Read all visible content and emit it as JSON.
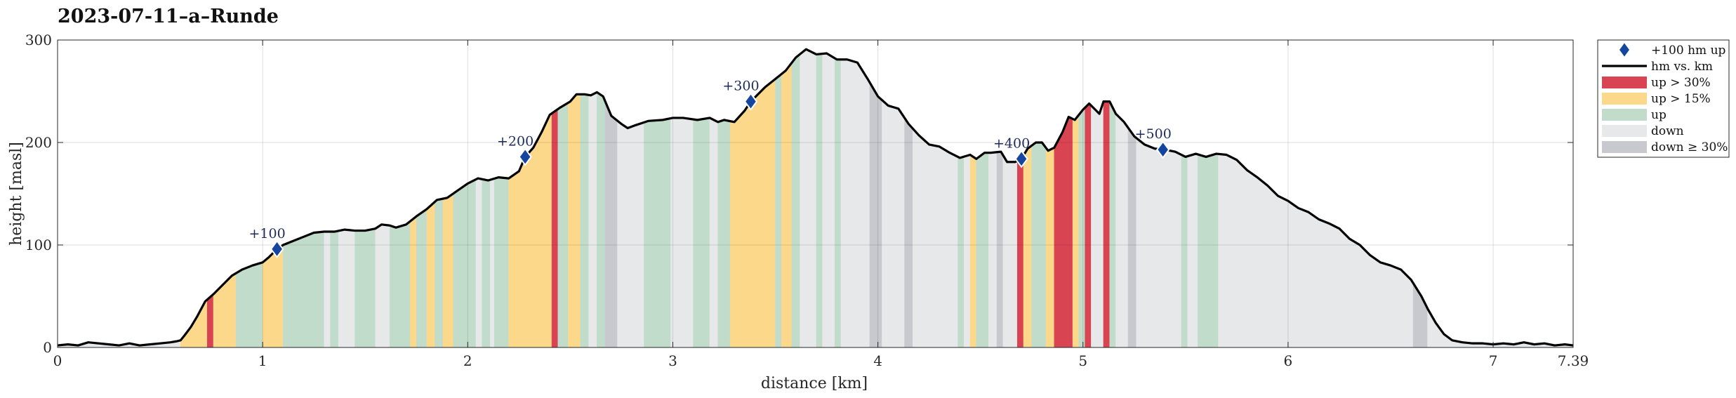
{
  "chart_data": {
    "type": "area",
    "title": "2023-07-11–a–Runde",
    "xlabel": "distance [km]",
    "ylabel": "height [masl]",
    "xlim": [
      0,
      7.39
    ],
    "ylim": [
      0,
      300
    ],
    "xticks": [
      "0",
      "1",
      "2",
      "3",
      "4",
      "5",
      "6",
      "7",
      "7.39"
    ],
    "xtick_values": [
      0,
      1,
      2,
      3,
      4,
      5,
      6,
      7,
      7.39
    ],
    "yticks": [
      0,
      100,
      200,
      300
    ],
    "grid": true,
    "legend_position": "outside-top-right",
    "colors": {
      "up_gt_30": "#d94452",
      "up_gt_15": "#fcd98a",
      "up": "#c2dccb",
      "down": "#e7e8ea",
      "down_ge_30": "#c7c9ce",
      "profile_line": "#000000",
      "marker": "#1446a0"
    },
    "legend": [
      {
        "key": "marker",
        "label": "+100 hm up"
      },
      {
        "key": "line",
        "label": "hm vs. km"
      },
      {
        "key": "up_gt_30",
        "label": "up > 30%"
      },
      {
        "key": "up_gt_15",
        "label": "up > 15%"
      },
      {
        "key": "up",
        "label": "up"
      },
      {
        "key": "down",
        "label": "down"
      },
      {
        "key": "down_ge_30",
        "label": "down ≥ 30%"
      }
    ],
    "profile": [
      [
        0.0,
        2
      ],
      [
        0.05,
        3
      ],
      [
        0.1,
        2
      ],
      [
        0.15,
        5
      ],
      [
        0.25,
        3
      ],
      [
        0.3,
        2
      ],
      [
        0.35,
        4
      ],
      [
        0.4,
        2
      ],
      [
        0.45,
        3
      ],
      [
        0.5,
        4
      ],
      [
        0.55,
        5
      ],
      [
        0.58,
        6
      ],
      [
        0.6,
        7
      ],
      [
        0.62,
        12
      ],
      [
        0.65,
        20
      ],
      [
        0.68,
        30
      ],
      [
        0.72,
        45
      ],
      [
        0.76,
        52
      ],
      [
        0.8,
        60
      ],
      [
        0.85,
        70
      ],
      [
        0.9,
        76
      ],
      [
        0.95,
        80
      ],
      [
        1.0,
        83
      ],
      [
        1.03,
        88
      ],
      [
        1.07,
        96
      ],
      [
        1.1,
        100
      ],
      [
        1.15,
        104
      ],
      [
        1.2,
        108
      ],
      [
        1.25,
        112
      ],
      [
        1.3,
        113
      ],
      [
        1.35,
        113
      ],
      [
        1.4,
        115
      ],
      [
        1.45,
        114
      ],
      [
        1.5,
        114
      ],
      [
        1.55,
        116
      ],
      [
        1.58,
        120
      ],
      [
        1.62,
        119
      ],
      [
        1.65,
        117
      ],
      [
        1.7,
        120
      ],
      [
        1.75,
        128
      ],
      [
        1.8,
        135
      ],
      [
        1.85,
        144
      ],
      [
        1.9,
        146
      ],
      [
        1.95,
        153
      ],
      [
        2.0,
        160
      ],
      [
        2.05,
        165
      ],
      [
        2.1,
        163
      ],
      [
        2.15,
        166
      ],
      [
        2.2,
        165
      ],
      [
        2.25,
        172
      ],
      [
        2.28,
        186
      ],
      [
        2.32,
        195
      ],
      [
        2.36,
        210
      ],
      [
        2.4,
        227
      ],
      [
        2.45,
        234
      ],
      [
        2.5,
        240
      ],
      [
        2.53,
        247
      ],
      [
        2.57,
        247
      ],
      [
        2.6,
        246
      ],
      [
        2.63,
        249
      ],
      [
        2.66,
        245
      ],
      [
        2.7,
        226
      ],
      [
        2.75,
        218
      ],
      [
        2.78,
        214
      ],
      [
        2.82,
        217
      ],
      [
        2.88,
        221
      ],
      [
        2.95,
        222
      ],
      [
        3.0,
        224
      ],
      [
        3.05,
        224
      ],
      [
        3.12,
        222
      ],
      [
        3.18,
        224
      ],
      [
        3.22,
        220
      ],
      [
        3.25,
        222
      ],
      [
        3.3,
        220
      ],
      [
        3.35,
        231
      ],
      [
        3.38,
        240
      ],
      [
        3.45,
        254
      ],
      [
        3.5,
        262
      ],
      [
        3.55,
        270
      ],
      [
        3.6,
        283
      ],
      [
        3.65,
        291
      ],
      [
        3.7,
        286
      ],
      [
        3.75,
        287
      ],
      [
        3.8,
        281
      ],
      [
        3.85,
        281
      ],
      [
        3.9,
        278
      ],
      [
        3.95,
        262
      ],
      [
        4.0,
        245
      ],
      [
        4.05,
        236
      ],
      [
        4.1,
        233
      ],
      [
        4.15,
        218
      ],
      [
        4.2,
        207
      ],
      [
        4.25,
        198
      ],
      [
        4.3,
        196
      ],
      [
        4.35,
        190
      ],
      [
        4.4,
        185
      ],
      [
        4.45,
        188
      ],
      [
        4.48,
        184
      ],
      [
        4.52,
        190
      ],
      [
        4.55,
        190
      ],
      [
        4.6,
        191
      ],
      [
        4.63,
        181
      ],
      [
        4.67,
        181
      ],
      [
        4.7,
        184
      ],
      [
        4.73,
        194
      ],
      [
        4.77,
        200
      ],
      [
        4.8,
        200
      ],
      [
        4.83,
        192
      ],
      [
        4.86,
        195
      ],
      [
        4.9,
        210
      ],
      [
        4.93,
        225
      ],
      [
        4.96,
        222
      ],
      [
        5.0,
        232
      ],
      [
        5.03,
        238
      ],
      [
        5.06,
        232
      ],
      [
        5.08,
        228
      ],
      [
        5.1,
        240
      ],
      [
        5.13,
        240
      ],
      [
        5.16,
        228
      ],
      [
        5.2,
        220
      ],
      [
        5.25,
        206
      ],
      [
        5.3,
        198
      ],
      [
        5.35,
        194
      ],
      [
        5.4,
        193
      ],
      [
        5.45,
        191
      ],
      [
        5.5,
        186
      ],
      [
        5.55,
        189
      ],
      [
        5.6,
        186
      ],
      [
        5.65,
        189
      ],
      [
        5.7,
        188
      ],
      [
        5.75,
        183
      ],
      [
        5.8,
        173
      ],
      [
        5.85,
        166
      ],
      [
        5.9,
        158
      ],
      [
        5.95,
        148
      ],
      [
        6.0,
        143
      ],
      [
        6.05,
        136
      ],
      [
        6.1,
        132
      ],
      [
        6.15,
        125
      ],
      [
        6.2,
        121
      ],
      [
        6.25,
        116
      ],
      [
        6.3,
        106
      ],
      [
        6.35,
        100
      ],
      [
        6.4,
        90
      ],
      [
        6.45,
        83
      ],
      [
        6.5,
        80
      ],
      [
        6.55,
        76
      ],
      [
        6.6,
        66
      ],
      [
        6.65,
        50
      ],
      [
        6.68,
        38
      ],
      [
        6.72,
        24
      ],
      [
        6.76,
        13
      ],
      [
        6.8,
        7
      ],
      [
        6.85,
        5
      ],
      [
        6.9,
        4
      ],
      [
        6.95,
        4
      ],
      [
        7.0,
        3
      ],
      [
        7.05,
        4
      ],
      [
        7.1,
        3
      ],
      [
        7.15,
        5
      ],
      [
        7.2,
        3
      ],
      [
        7.25,
        4
      ],
      [
        7.3,
        2
      ],
      [
        7.35,
        3
      ],
      [
        7.39,
        2
      ]
    ],
    "segments": [
      [
        0.0,
        0.6,
        "down"
      ],
      [
        0.6,
        0.73,
        "up_gt_15"
      ],
      [
        0.73,
        0.76,
        "up_gt_30"
      ],
      [
        0.76,
        0.87,
        "up_gt_15"
      ],
      [
        0.87,
        1.0,
        "up"
      ],
      [
        1.0,
        1.1,
        "up_gt_15"
      ],
      [
        1.1,
        1.3,
        "up"
      ],
      [
        1.3,
        1.33,
        "down"
      ],
      [
        1.33,
        1.37,
        "up"
      ],
      [
        1.37,
        1.45,
        "down"
      ],
      [
        1.45,
        1.55,
        "up"
      ],
      [
        1.55,
        1.62,
        "down"
      ],
      [
        1.62,
        1.72,
        "up"
      ],
      [
        1.72,
        1.75,
        "up_gt_15"
      ],
      [
        1.75,
        1.8,
        "up"
      ],
      [
        1.8,
        1.84,
        "up_gt_15"
      ],
      [
        1.84,
        1.88,
        "up"
      ],
      [
        1.88,
        1.93,
        "up_gt_15"
      ],
      [
        1.93,
        2.04,
        "up"
      ],
      [
        2.04,
        2.07,
        "down"
      ],
      [
        2.07,
        2.11,
        "up"
      ],
      [
        2.11,
        2.13,
        "down"
      ],
      [
        2.13,
        2.2,
        "up"
      ],
      [
        2.2,
        2.41,
        "up_gt_15"
      ],
      [
        2.41,
        2.44,
        "up_gt_30"
      ],
      [
        2.44,
        2.49,
        "up"
      ],
      [
        2.49,
        2.55,
        "up_gt_15"
      ],
      [
        2.55,
        2.59,
        "up"
      ],
      [
        2.59,
        2.63,
        "down"
      ],
      [
        2.63,
        2.67,
        "up"
      ],
      [
        2.67,
        2.73,
        "down_ge_30"
      ],
      [
        2.73,
        2.86,
        "down"
      ],
      [
        2.86,
        2.99,
        "up"
      ],
      [
        2.99,
        3.1,
        "down"
      ],
      [
        3.1,
        3.18,
        "up"
      ],
      [
        3.18,
        3.22,
        "down"
      ],
      [
        3.22,
        3.28,
        "up"
      ],
      [
        3.28,
        3.5,
        "up_gt_15"
      ],
      [
        3.5,
        3.53,
        "up"
      ],
      [
        3.53,
        3.58,
        "up_gt_15"
      ],
      [
        3.58,
        3.62,
        "up"
      ],
      [
        3.62,
        3.7,
        "down"
      ],
      [
        3.7,
        3.73,
        "up"
      ],
      [
        3.73,
        3.79,
        "down"
      ],
      [
        3.79,
        3.82,
        "up"
      ],
      [
        3.82,
        3.96,
        "down"
      ],
      [
        3.96,
        4.02,
        "down_ge_30"
      ],
      [
        4.02,
        4.13,
        "down"
      ],
      [
        4.13,
        4.17,
        "down_ge_30"
      ],
      [
        4.17,
        4.39,
        "down"
      ],
      [
        4.39,
        4.42,
        "up"
      ],
      [
        4.42,
        4.45,
        "down"
      ],
      [
        4.45,
        4.48,
        "up_gt_15"
      ],
      [
        4.48,
        4.54,
        "up"
      ],
      [
        4.54,
        4.58,
        "down"
      ],
      [
        4.58,
        4.61,
        "down_ge_30"
      ],
      [
        4.61,
        4.68,
        "down"
      ],
      [
        4.68,
        4.71,
        "up_gt_30"
      ],
      [
        4.71,
        4.75,
        "up_gt_15"
      ],
      [
        4.75,
        4.82,
        "up"
      ],
      [
        4.82,
        4.86,
        "up_gt_15"
      ],
      [
        4.86,
        4.95,
        "up_gt_30"
      ],
      [
        4.95,
        4.98,
        "up_gt_15"
      ],
      [
        4.98,
        5.01,
        "up"
      ],
      [
        5.01,
        5.04,
        "up_gt_30"
      ],
      [
        5.04,
        5.1,
        "down"
      ],
      [
        5.1,
        5.13,
        "up_gt_30"
      ],
      [
        5.13,
        5.16,
        "up"
      ],
      [
        5.16,
        5.22,
        "down"
      ],
      [
        5.22,
        5.26,
        "down_ge_30"
      ],
      [
        5.26,
        5.48,
        "down"
      ],
      [
        5.48,
        5.51,
        "up"
      ],
      [
        5.51,
        5.56,
        "down"
      ],
      [
        5.56,
        5.66,
        "up"
      ],
      [
        5.66,
        6.61,
        "down"
      ],
      [
        6.61,
        6.68,
        "down_ge_30"
      ],
      [
        6.68,
        7.39,
        "down"
      ]
    ],
    "markers": [
      {
        "x": 1.07,
        "y": 96,
        "label": "+100"
      },
      {
        "x": 2.28,
        "y": 186,
        "label": "+200"
      },
      {
        "x": 3.38,
        "y": 240,
        "label": "+300"
      },
      {
        "x": 4.7,
        "y": 184,
        "label": "+400"
      },
      {
        "x": 5.39,
        "y": 193,
        "label": "+500"
      }
    ]
  }
}
